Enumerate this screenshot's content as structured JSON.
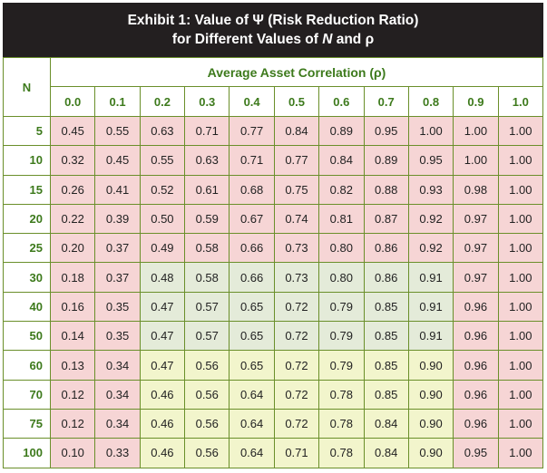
{
  "header": {
    "line1": "Exhibit 1: Value of Ψ (Risk Reduction Ratio)",
    "line2_prefix": "for Different Values of ",
    "line2_n": "N",
    "line2_mid": " and ",
    "line2_rho": "ρ"
  },
  "table": {
    "n_header": "N",
    "correlation_title": "Average Asset Correlation (ρ)",
    "columns": [
      "0.0",
      "0.1",
      "0.2",
      "0.3",
      "0.4",
      "0.5",
      "0.6",
      "0.7",
      "0.8",
      "0.9",
      "1.0"
    ],
    "rows": [
      {
        "n": "5",
        "values": [
          "0.45",
          "0.55",
          "0.63",
          "0.71",
          "0.77",
          "0.84",
          "0.89",
          "0.95",
          "1.00",
          "1.00",
          "1.00"
        ]
      },
      {
        "n": "10",
        "values": [
          "0.32",
          "0.45",
          "0.55",
          "0.63",
          "0.71",
          "0.77",
          "0.84",
          "0.89",
          "0.95",
          "1.00",
          "1.00"
        ]
      },
      {
        "n": "15",
        "values": [
          "0.26",
          "0.41",
          "0.52",
          "0.61",
          "0.68",
          "0.75",
          "0.82",
          "0.88",
          "0.93",
          "0.98",
          "1.00"
        ]
      },
      {
        "n": "20",
        "values": [
          "0.22",
          "0.39",
          "0.50",
          "0.59",
          "0.67",
          "0.74",
          "0.81",
          "0.87",
          "0.92",
          "0.97",
          "1.00"
        ]
      },
      {
        "n": "25",
        "values": [
          "0.20",
          "0.37",
          "0.49",
          "0.58",
          "0.66",
          "0.73",
          "0.80",
          "0.86",
          "0.92",
          "0.97",
          "1.00"
        ]
      },
      {
        "n": "30",
        "values": [
          "0.18",
          "0.37",
          "0.48",
          "0.58",
          "0.66",
          "0.73",
          "0.80",
          "0.86",
          "0.91",
          "0.97",
          "1.00"
        ]
      },
      {
        "n": "40",
        "values": [
          "0.16",
          "0.35",
          "0.47",
          "0.57",
          "0.65",
          "0.72",
          "0.79",
          "0.85",
          "0.91",
          "0.96",
          "1.00"
        ]
      },
      {
        "n": "50",
        "values": [
          "0.14",
          "0.35",
          "0.47",
          "0.57",
          "0.65",
          "0.72",
          "0.79",
          "0.85",
          "0.91",
          "0.96",
          "1.00"
        ]
      },
      {
        "n": "60",
        "values": [
          "0.13",
          "0.34",
          "0.47",
          "0.56",
          "0.65",
          "0.72",
          "0.79",
          "0.85",
          "0.90",
          "0.96",
          "1.00"
        ]
      },
      {
        "n": "70",
        "values": [
          "0.12",
          "0.34",
          "0.46",
          "0.56",
          "0.64",
          "0.72",
          "0.78",
          "0.85",
          "0.90",
          "0.96",
          "1.00"
        ]
      },
      {
        "n": "75",
        "values": [
          "0.12",
          "0.34",
          "0.46",
          "0.56",
          "0.64",
          "0.72",
          "0.78",
          "0.84",
          "0.90",
          "0.96",
          "1.00"
        ]
      },
      {
        "n": "100",
        "values": [
          "0.10",
          "0.33",
          "0.46",
          "0.56",
          "0.64",
          "0.71",
          "0.78",
          "0.84",
          "0.90",
          "0.95",
          "1.00"
        ]
      }
    ]
  },
  "colors": {
    "header_bg": "#231f20",
    "accent_green": "#3d7a1c",
    "border": "#6a8f2a",
    "highlight_pink": "#f6d5d5",
    "highlight_green": "#e4ebd9",
    "highlight_yellow": "#f2f5cc"
  }
}
